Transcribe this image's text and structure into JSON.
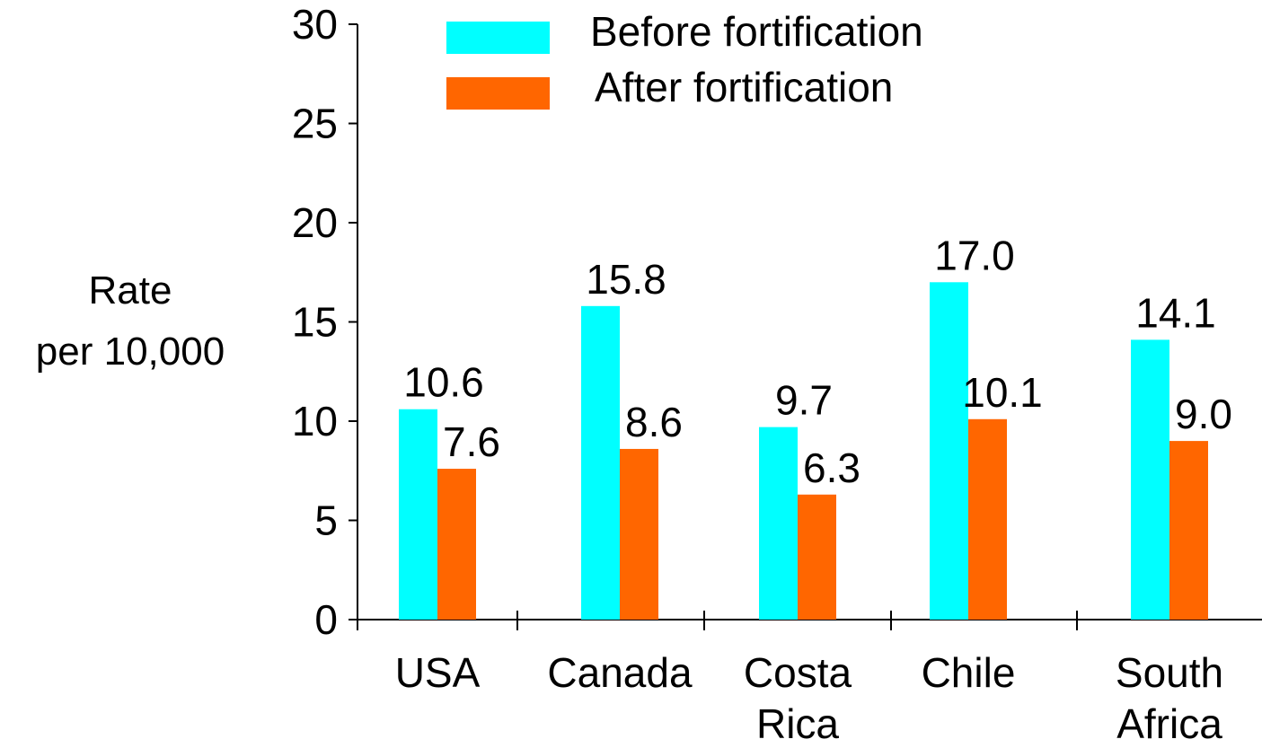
{
  "chart_data": {
    "type": "bar",
    "title": "",
    "ylabel_lines": [
      "Rate",
      "per 10,000"
    ],
    "xlabel": "",
    "ylim": [
      0,
      30
    ],
    "yticks": [
      0,
      5,
      10,
      15,
      20,
      25,
      30
    ],
    "categories": [
      [
        "USA"
      ],
      [
        "Canada"
      ],
      [
        "Costa",
        "Rica"
      ],
      [
        "Chile"
      ],
      [
        "South",
        "Africa"
      ]
    ],
    "series": [
      {
        "name": "Before fortification",
        "color": "#00FFFF",
        "values": [
          10.6,
          15.8,
          9.7,
          17.0,
          14.1
        ],
        "labels": [
          "10.6",
          "15.8",
          "9.7",
          "17.0",
          "14.1"
        ]
      },
      {
        "name": "After fortification",
        "color": "#FF6600",
        "values": [
          7.6,
          8.6,
          6.3,
          10.1,
          9.0
        ],
        "labels": [
          "7.6",
          "8.6",
          "6.3",
          "10.1",
          "9.0"
        ]
      }
    ],
    "legend_position": "top",
    "grid": false
  }
}
